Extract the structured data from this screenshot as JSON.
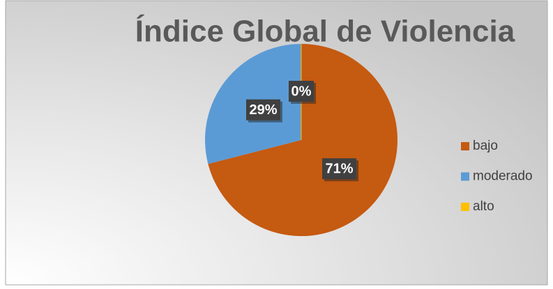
{
  "chart_data": {
    "type": "pie",
    "title": "Índice Global de Violencia",
    "categories": [
      "bajo",
      "moderado",
      "alto"
    ],
    "values": [
      71,
      29,
      0
    ],
    "value_labels": [
      "71%",
      "29%",
      "0%"
    ],
    "colors": [
      "#c55a11",
      "#5b9bd5",
      "#ffc000"
    ],
    "legend": "right"
  }
}
